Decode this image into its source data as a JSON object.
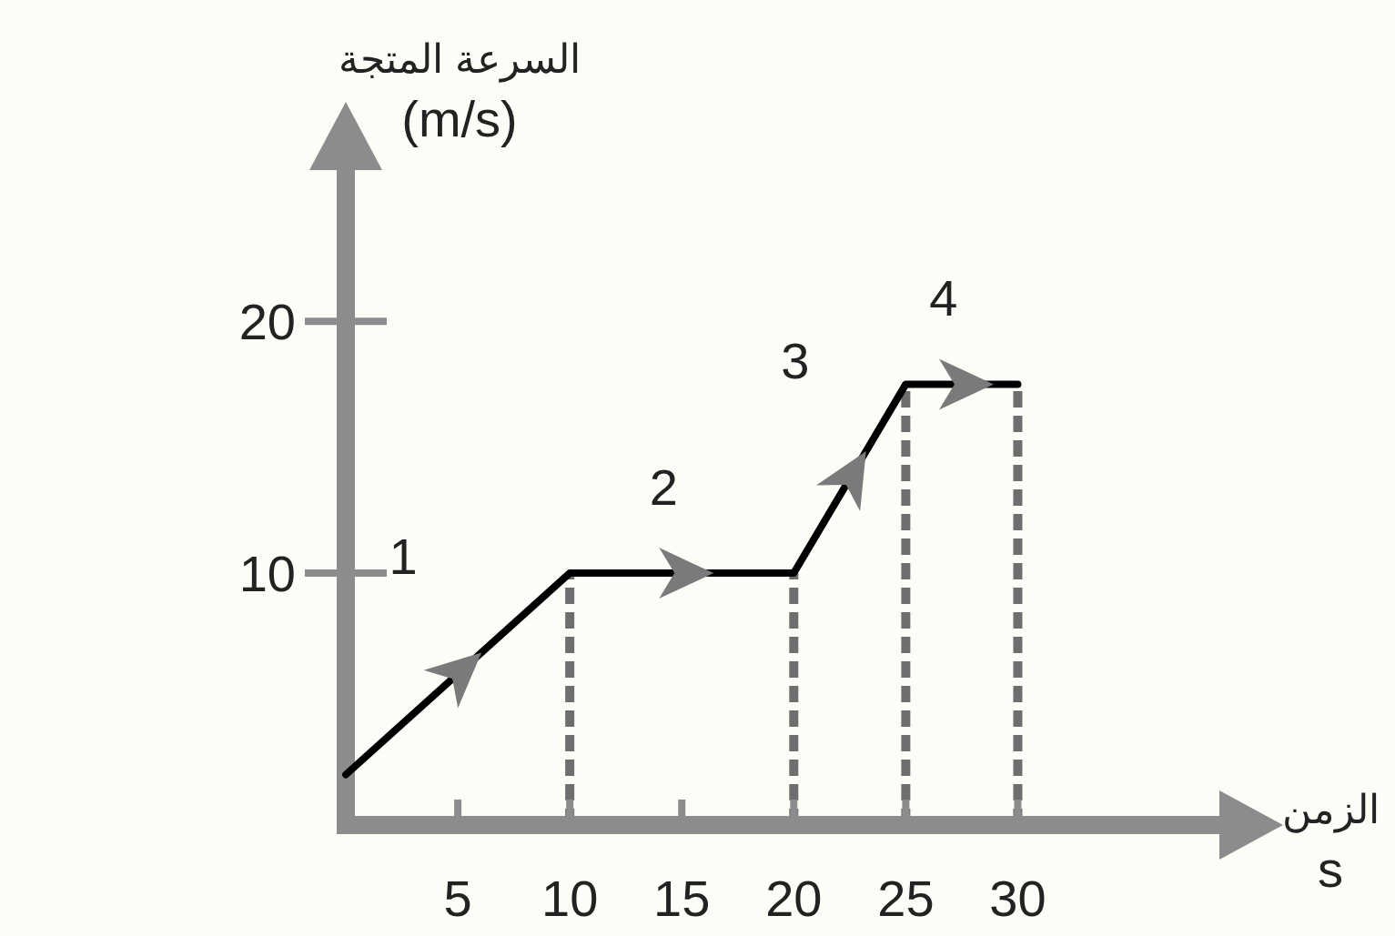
{
  "chart_data": {
    "type": "line",
    "xlabel": "الزمن\ns",
    "ylabel": "السرعة المتجة\n(m/s)",
    "x": [
      0,
      10,
      20,
      25,
      30
    ],
    "series": [
      {
        "color": "#000000",
        "values": [
          2,
          10,
          10,
          17.5,
          17.5
        ]
      }
    ],
    "xlim": [
      0,
      39
    ],
    "ylim": [
      0,
      26
    ],
    "xticks": [
      5,
      10,
      15,
      20,
      25,
      30
    ],
    "yticks": [
      10,
      20
    ],
    "grid": false,
    "marker": "none",
    "line_style": "solid",
    "ref_lines": [
      {
        "axis": "x",
        "value": 10,
        "color": "#6e6e6e",
        "line_style": "dashed"
      },
      {
        "axis": "x",
        "value": 20,
        "color": "#6e6e6e",
        "line_style": "dashed"
      },
      {
        "axis": "x",
        "value": 25,
        "color": "#6e6e6e",
        "line_style": "dashed"
      },
      {
        "axis": "x",
        "value": 30,
        "color": "#6e6e6e",
        "line_style": "dashed"
      }
    ],
    "annotations": [
      "1",
      "2",
      "3",
      "4"
    ]
  }
}
